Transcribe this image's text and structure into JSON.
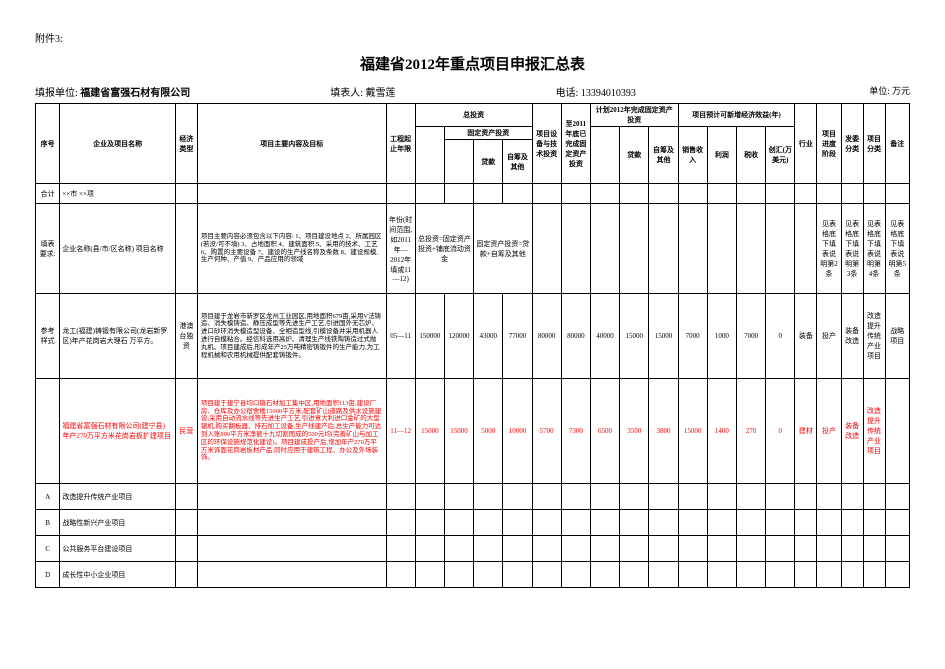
{
  "attachment": "附件3:",
  "title": "福建省2012年重点项目申报汇总表",
  "header": {
    "unit_label": "填报单位:",
    "unit_value": "福建省富强石材有限公司",
    "filler_label": "填表人:",
    "filler_value": "戴雪莲",
    "phone_label": "电话:",
    "phone_value": "13394010393",
    "unit_right": "单位: 万元"
  },
  "thead": {
    "seq": "序号",
    "name": "企业及项目名称",
    "type": "经济类型",
    "content": "项目主要内容及目标",
    "period": "工程起止年限",
    "total_inv": "总投资",
    "fixed_inv": "固定资产投资",
    "loan": "贷款",
    "self_other": "自筹及其他",
    "equip_tech": "项目设备与技术投资",
    "done2011": "至2011年底已完成固定资产投资",
    "plan2012": "计划2012年完成固定资产投资",
    "plan_loan": "贷款",
    "plan_self": "自筹及其他",
    "econ": "项目预计可新增经济效益(年)",
    "sales": "销售收入",
    "profit": "利润",
    "tax": "税收",
    "fx": "创汇(万美元)",
    "industry": "行业",
    "stage": "项目进度阶段",
    "cat1": "发委分类",
    "cat2": "项目分类",
    "remark": "备注"
  },
  "rows": {
    "heji": {
      "seq": "合计",
      "name": "××市  ××项"
    },
    "fill": {
      "seq": "填表要求:",
      "name": "企业名称(县/市/区名称)\n项目名称",
      "content": "项目主要内容必须包含以下内容:\n1、项目建设地点\n2、所属园区(若没/可不填)\n3、占地面积\n4、建筑面积\n5、采用的技术、工艺\n6、购置的主要设备\n7、建设的生产线名称及条数\n8、建设规模,生产何种、产值\n9、产品应用的领域",
      "period": "年份(时间范围,如2011年—2012年填或11—12)",
      "total": "总投资=固定资产投资+铺底流动资金",
      "fixed": "固定资产投资=贷款+自筹及其他",
      "stage": "见表格底下填表说明第2条",
      "cat1": "见表格底下填表说明第3条",
      "cat2": "见表格底下填表说明第4条",
      "remark": "见表格底下填表说明第5条"
    },
    "ref": {
      "seq": "参考样式",
      "name": "龙工(福建)铸锻有限公司(龙岩新罗区)年产花岗岩大理石  万平方。",
      "type": "港澳台独资",
      "content": "项目建于龙岩市新罗区龙州工业园区,用地面积679亩,采用V法铸造、消失模铸造、静压成型等先进生产工艺,引进国外无芯炉、进口砂环消失模造型设备、全相造型线,引模设备并采用机器人进行自模粘合。经信科选用高炉、清理生产线铁陶铸造过式抛丸机、项目建成后,形成年产25万吨精密铸锻件的生产能力,为工程机械和农用机械提供配套铸锻件。",
      "period": "05—11",
      "v1": "150000",
      "v2": "120000",
      "v3": "43000",
      "v4": "77000",
      "v5": "80000",
      "v6": "80000",
      "v7": "40000",
      "v8": "15000",
      "v9": "15000",
      "v10": "7000",
      "v11": "1000",
      "v12": "7000",
      "v13": "0",
      "industry": "装备",
      "stage": "投产",
      "cat1": "装备改造",
      "cat2": "改造提升传统产业项目",
      "remark": "战略项目"
    },
    "red": {
      "name": "福建省富强石材有限公司(建宁县)\n年产270万平方米花岗岩板扩建项目",
      "type": "民营",
      "content": "项目建于建宁县均口镇石材加工集中区,用地面积113亩,建设厂房、仓库及办公宿舍楼15000平方米,配套矿山道路及供水设施建设;采用自动流水线等先进生产工艺,引进意大利进口金矿的大型锯机,购买翻板器、排石加工设备,生产线建产后,总生产能力可达到入账800平方米净额十九切割而成的500元均(完善矿山与加工区的环保设施规范化建设)。项目建成投产后,增加年产270万平方米饰面花岗岩板材产品;同时应用于建筑工程、办公及外场装饰。",
      "period": "11—12",
      "v1": "15000",
      "v2": "15000",
      "v3": "5000",
      "v4": "10000",
      "v5": "5700",
      "v6": "7300",
      "v7": "6500",
      "v8": "3500",
      "v9": "3800",
      "v10": "15000",
      "v11": "1400",
      "v12": "270",
      "v13": "0",
      "industry": "建材",
      "stage": "投产",
      "cat1": "装备改造",
      "cat2": "改造提升传统产业项目"
    },
    "catA": {
      "seq": "A",
      "name": "改造提升传统产业项目"
    },
    "catB": {
      "seq": "B",
      "name": "战略性新兴产业项目"
    },
    "catC": {
      "seq": "C",
      "name": "公共服务平台建设项目"
    },
    "catD": {
      "seq": "D",
      "name": "成长性中小企业项目"
    }
  }
}
